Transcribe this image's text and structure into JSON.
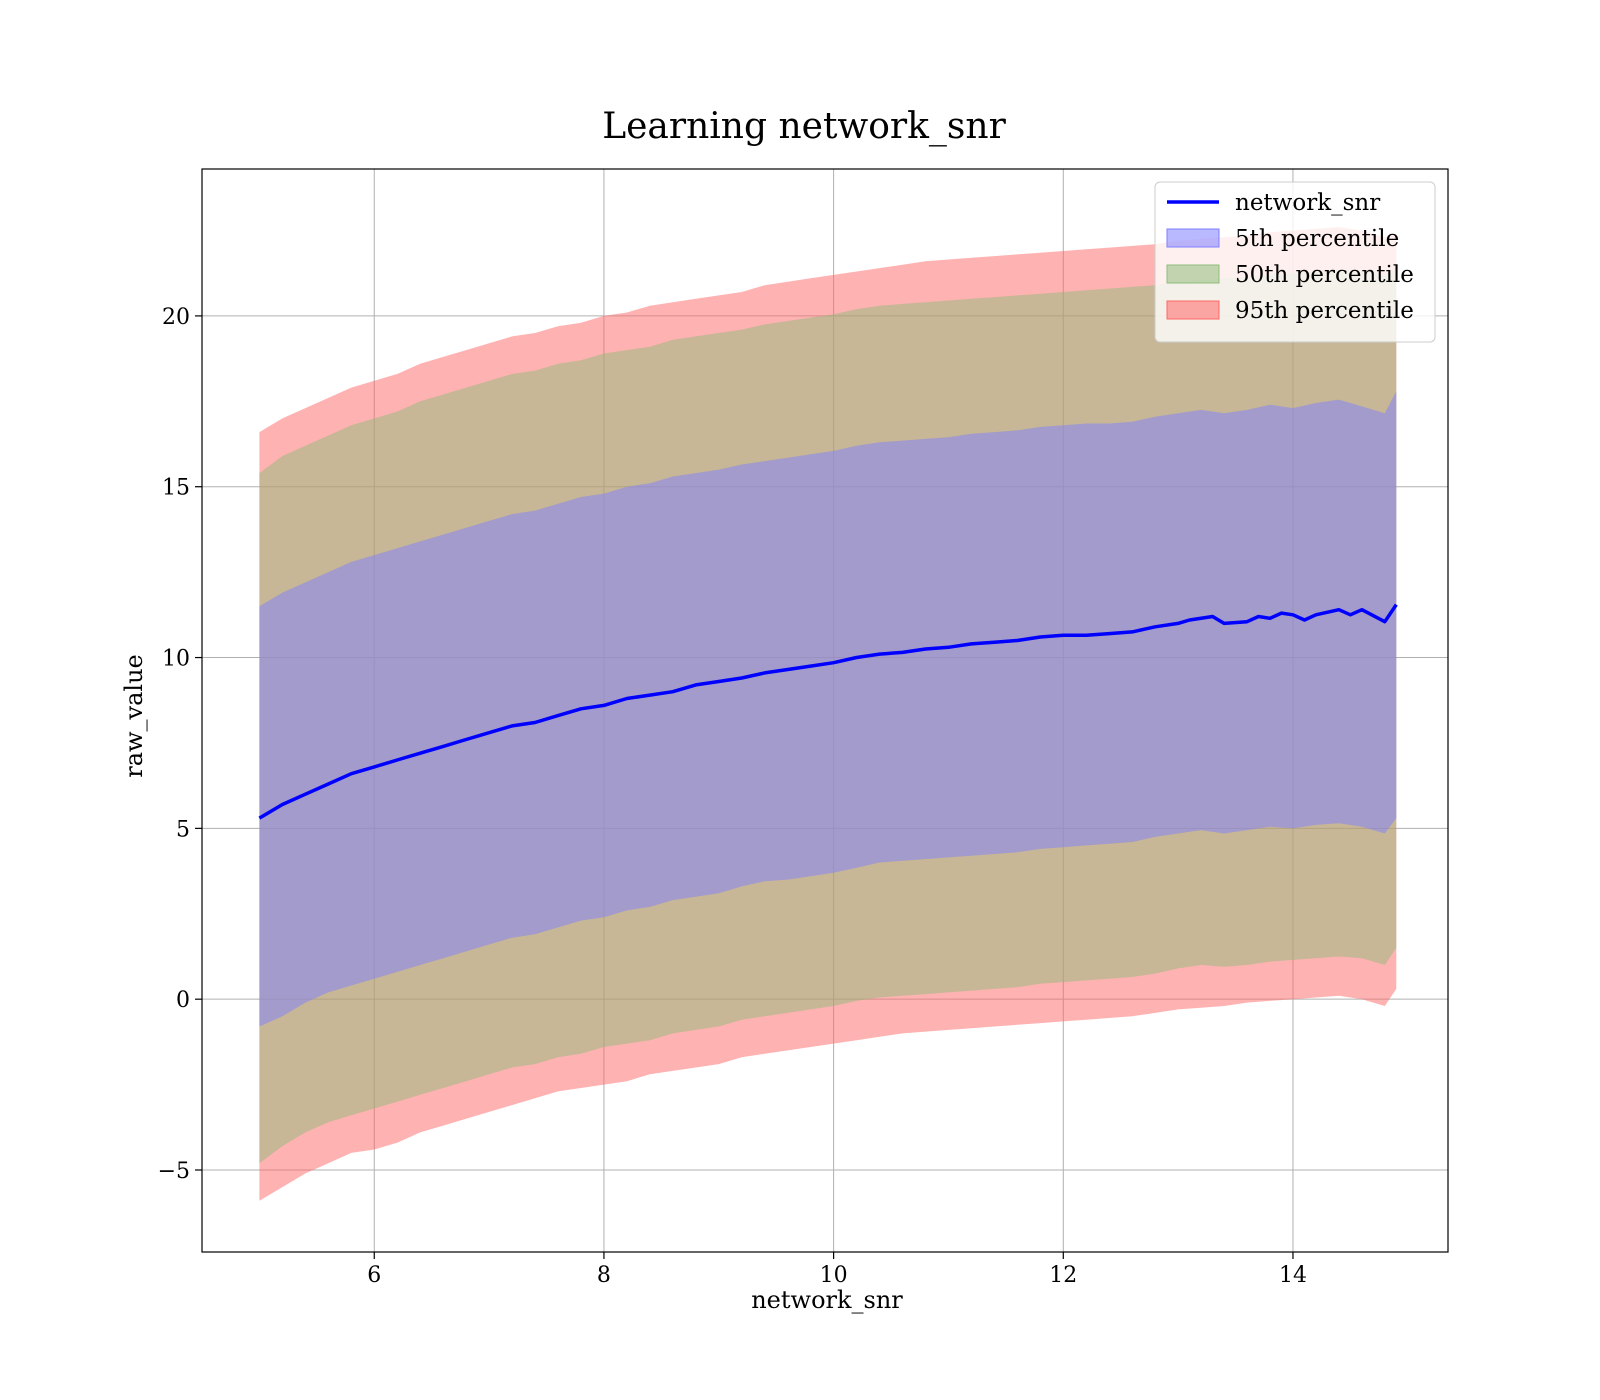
{
  "chart_data": {
    "type": "area",
    "title": "Learning network_snr",
    "xlabel": "network_snr",
    "ylabel": "raw_value",
    "xlim": [
      4.5,
      15.35
    ],
    "ylim": [
      -7.4,
      24.3
    ],
    "xticks": [
      6,
      8,
      10,
      12,
      14
    ],
    "yticks": [
      -5,
      0,
      5,
      10,
      15,
      20
    ],
    "ytick_labels": [
      "−5",
      "0",
      "5",
      "10",
      "15",
      "20"
    ],
    "grid": true,
    "legend_position": "top-right",
    "bands": [
      {
        "name": "95th percentile",
        "color": "#ff6666",
        "alpha": 0.5,
        "x": [
          5.0,
          5.2,
          5.4,
          5.6,
          5.8,
          6.0,
          6.2,
          6.4,
          6.6,
          6.8,
          7.0,
          7.2,
          7.4,
          7.6,
          7.8,
          8.0,
          8.2,
          8.4,
          8.6,
          8.8,
          9.0,
          9.2,
          9.4,
          9.6,
          9.8,
          10.0,
          10.2,
          10.4,
          10.6,
          10.8,
          11.0,
          11.2,
          11.4,
          11.6,
          11.8,
          12.0,
          12.2,
          12.4,
          12.6,
          12.8,
          13.0,
          13.2,
          13.4,
          13.6,
          13.8,
          14.0,
          14.2,
          14.4,
          14.6,
          14.8,
          14.9
        ],
        "lower": [
          -5.9,
          -5.5,
          -5.1,
          -4.8,
          -4.5,
          -4.4,
          -4.2,
          -3.9,
          -3.7,
          -3.5,
          -3.3,
          -3.1,
          -2.9,
          -2.7,
          -2.6,
          -2.5,
          -2.4,
          -2.2,
          -2.1,
          -2.0,
          -1.9,
          -1.7,
          -1.6,
          -1.5,
          -1.4,
          -1.3,
          -1.2,
          -1.1,
          -1.0,
          -0.95,
          -0.9,
          -0.85,
          -0.8,
          -0.75,
          -0.7,
          -0.65,
          -0.6,
          -0.55,
          -0.5,
          -0.4,
          -0.3,
          -0.25,
          -0.2,
          -0.1,
          -0.05,
          0.0,
          0.05,
          0.1,
          0.0,
          -0.2,
          0.3
        ],
        "upper": [
          16.6,
          17.0,
          17.3,
          17.6,
          17.9,
          18.1,
          18.3,
          18.6,
          18.8,
          19.0,
          19.2,
          19.4,
          19.5,
          19.7,
          19.8,
          20.0,
          20.1,
          20.3,
          20.4,
          20.5,
          20.6,
          20.7,
          20.9,
          21.0,
          21.1,
          21.2,
          21.3,
          21.4,
          21.5,
          21.6,
          21.65,
          21.7,
          21.75,
          21.8,
          21.85,
          21.9,
          21.95,
          22.0,
          22.05,
          22.1,
          22.2,
          22.25,
          22.3,
          22.35,
          22.45,
          22.5,
          22.55,
          22.6,
          22.5,
          22.3,
          22.4
        ]
      },
      {
        "name": "50th percentile",
        "color": "#8fbc7a",
        "alpha": 0.5,
        "x": [
          5.0,
          5.2,
          5.4,
          5.6,
          5.8,
          6.0,
          6.2,
          6.4,
          6.6,
          6.8,
          7.0,
          7.2,
          7.4,
          7.6,
          7.8,
          8.0,
          8.2,
          8.4,
          8.6,
          8.8,
          9.0,
          9.2,
          9.4,
          9.6,
          9.8,
          10.0,
          10.2,
          10.4,
          10.6,
          10.8,
          11.0,
          11.2,
          11.4,
          11.6,
          11.8,
          12.0,
          12.2,
          12.4,
          12.6,
          12.8,
          13.0,
          13.2,
          13.4,
          13.6,
          13.8,
          14.0,
          14.2,
          14.4,
          14.6,
          14.8,
          14.9
        ],
        "lower": [
          -4.8,
          -4.3,
          -3.9,
          -3.6,
          -3.4,
          -3.2,
          -3.0,
          -2.8,
          -2.6,
          -2.4,
          -2.2,
          -2.0,
          -1.9,
          -1.7,
          -1.6,
          -1.4,
          -1.3,
          -1.2,
          -1.0,
          -0.9,
          -0.8,
          -0.6,
          -0.5,
          -0.4,
          -0.3,
          -0.2,
          -0.05,
          0.05,
          0.1,
          0.15,
          0.2,
          0.25,
          0.3,
          0.35,
          0.45,
          0.5,
          0.55,
          0.6,
          0.65,
          0.75,
          0.9,
          1.0,
          0.95,
          1.0,
          1.1,
          1.15,
          1.2,
          1.25,
          1.2,
          1.0,
          1.5
        ],
        "upper": [
          15.4,
          15.9,
          16.2,
          16.5,
          16.8,
          17.0,
          17.2,
          17.5,
          17.7,
          17.9,
          18.1,
          18.3,
          18.4,
          18.6,
          18.7,
          18.9,
          19.0,
          19.1,
          19.3,
          19.4,
          19.5,
          19.6,
          19.75,
          19.85,
          19.95,
          20.05,
          20.2,
          20.3,
          20.35,
          20.4,
          20.45,
          20.5,
          20.55,
          20.6,
          20.65,
          20.7,
          20.75,
          20.8,
          20.85,
          20.9,
          21.0,
          21.05,
          21.1,
          21.15,
          21.2,
          21.25,
          21.3,
          21.35,
          21.3,
          21.2,
          21.4
        ]
      },
      {
        "name": "5th percentile",
        "color": "#7f7fff",
        "alpha": 0.5,
        "x": [
          5.0,
          5.2,
          5.4,
          5.6,
          5.8,
          6.0,
          6.2,
          6.4,
          6.6,
          6.8,
          7.0,
          7.2,
          7.4,
          7.6,
          7.8,
          8.0,
          8.2,
          8.4,
          8.6,
          8.8,
          9.0,
          9.2,
          9.4,
          9.6,
          9.8,
          10.0,
          10.2,
          10.4,
          10.6,
          10.8,
          11.0,
          11.2,
          11.4,
          11.6,
          11.8,
          12.0,
          12.2,
          12.4,
          12.6,
          12.8,
          13.0,
          13.2,
          13.4,
          13.6,
          13.8,
          14.0,
          14.2,
          14.4,
          14.6,
          14.8,
          14.9
        ],
        "lower": [
          -0.8,
          -0.5,
          -0.1,
          0.2,
          0.4,
          0.6,
          0.8,
          1.0,
          1.2,
          1.4,
          1.6,
          1.8,
          1.9,
          2.1,
          2.3,
          2.4,
          2.6,
          2.7,
          2.9,
          3.0,
          3.1,
          3.3,
          3.45,
          3.5,
          3.6,
          3.7,
          3.85,
          4.0,
          4.05,
          4.1,
          4.15,
          4.2,
          4.25,
          4.3,
          4.4,
          4.45,
          4.5,
          4.55,
          4.6,
          4.75,
          4.85,
          4.95,
          4.85,
          4.95,
          5.05,
          5.0,
          5.1,
          5.15,
          5.05,
          4.85,
          5.3
        ],
        "upper": [
          11.5,
          11.9,
          12.2,
          12.5,
          12.8,
          13.0,
          13.2,
          13.4,
          13.6,
          13.8,
          14.0,
          14.2,
          14.3,
          14.5,
          14.7,
          14.8,
          15.0,
          15.1,
          15.3,
          15.4,
          15.5,
          15.65,
          15.75,
          15.85,
          15.95,
          16.05,
          16.2,
          16.3,
          16.35,
          16.4,
          16.45,
          16.55,
          16.6,
          16.65,
          16.75,
          16.8,
          16.85,
          16.85,
          16.9,
          17.05,
          17.15,
          17.25,
          17.15,
          17.25,
          17.4,
          17.3,
          17.45,
          17.55,
          17.35,
          17.15,
          17.8
        ]
      }
    ],
    "series": [
      {
        "name": "network_snr",
        "color": "#0000ff",
        "x": [
          5.0,
          5.2,
          5.4,
          5.6,
          5.8,
          6.0,
          6.2,
          6.4,
          6.6,
          6.8,
          7.0,
          7.2,
          7.4,
          7.6,
          7.8,
          8.0,
          8.2,
          8.4,
          8.6,
          8.8,
          9.0,
          9.2,
          9.4,
          9.6,
          9.8,
          10.0,
          10.2,
          10.4,
          10.6,
          10.8,
          11.0,
          11.2,
          11.4,
          11.6,
          11.8,
          12.0,
          12.2,
          12.4,
          12.6,
          12.8,
          13.0,
          13.1,
          13.3,
          13.4,
          13.6,
          13.7,
          13.8,
          13.9,
          14.0,
          14.1,
          14.2,
          14.4,
          14.5,
          14.6,
          14.8,
          14.9
        ],
        "values": [
          5.3,
          5.7,
          6.0,
          6.3,
          6.6,
          6.8,
          7.0,
          7.2,
          7.4,
          7.6,
          7.8,
          8.0,
          8.1,
          8.3,
          8.5,
          8.6,
          8.8,
          8.9,
          9.0,
          9.2,
          9.3,
          9.4,
          9.55,
          9.65,
          9.75,
          9.85,
          10.0,
          10.1,
          10.15,
          10.25,
          10.3,
          10.4,
          10.45,
          10.5,
          10.6,
          10.65,
          10.65,
          10.7,
          10.75,
          10.9,
          11.0,
          11.1,
          11.2,
          11.0,
          11.05,
          11.2,
          11.15,
          11.3,
          11.25,
          11.1,
          11.25,
          11.4,
          11.25,
          11.4,
          11.05,
          11.55
        ]
      }
    ],
    "legend": [
      {
        "name": "network_snr",
        "kind": "line",
        "color": "#0000ff"
      },
      {
        "name": "5th percentile",
        "kind": "patch",
        "color": "#7f7fff"
      },
      {
        "name": "50th percentile",
        "kind": "patch",
        "color": "#8fbc7a"
      },
      {
        "name": "95th percentile",
        "kind": "patch",
        "color": "#ff6666"
      }
    ]
  }
}
